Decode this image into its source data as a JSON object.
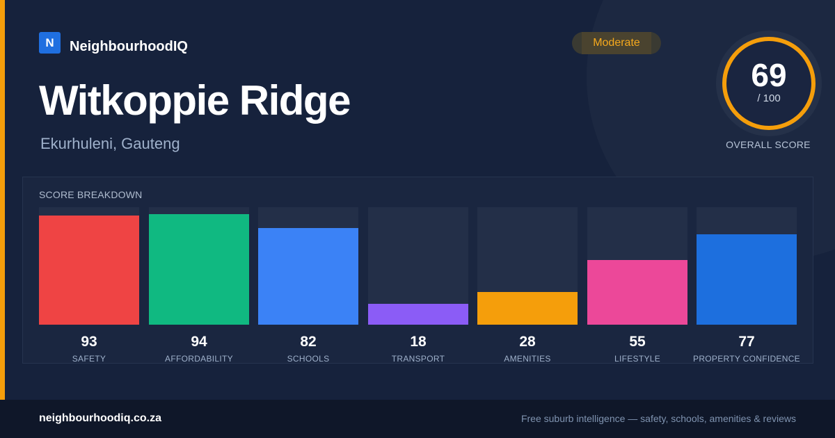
{
  "brand": {
    "logo_letter": "N",
    "name": "NeighbourhoodIQ"
  },
  "suburb": {
    "name": "Witkoppie Ridge",
    "location": "Ekurhuleni, Gauteng"
  },
  "rating": {
    "label": "Moderate"
  },
  "overall": {
    "score": "69",
    "max": "/ 100",
    "label": "OVERALL SCORE",
    "fraction": 0.69
  },
  "breakdown": {
    "title": "SCORE BREAKDOWN",
    "items": [
      {
        "value": "93",
        "label": "SAFETY",
        "color": "#ef4444"
      },
      {
        "value": "94",
        "label": "AFFORDABILITY",
        "color": "#10b981"
      },
      {
        "value": "82",
        "label": "SCHOOLS",
        "color": "#3b82f6"
      },
      {
        "value": "18",
        "label": "TRANSPORT",
        "color": "#8b5cf6"
      },
      {
        "value": "28",
        "label": "AMENITIES",
        "color": "#f59e0b"
      },
      {
        "value": "55",
        "label": "LIFESTYLE",
        "color": "#ec4899"
      },
      {
        "value": "77",
        "label": "PROPERTY CONFIDENCE",
        "color": "#1d6fde"
      }
    ]
  },
  "footer": {
    "domain": "neighbourhoodiq.co.za",
    "tagline": "Free suburb intelligence — safety, schools, amenities & reviews"
  },
  "colors": {
    "accent": "#f59e0b",
    "ring": "#f59e0b",
    "brand": "#1f6fe0",
    "background": "#16223c"
  }
}
